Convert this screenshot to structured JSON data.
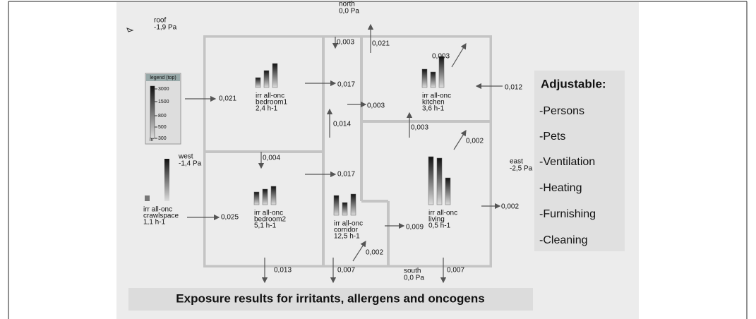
{
  "outdoor": [
    {
      "name": "roof",
      "pressure": "-1,9 Pa"
    },
    {
      "name": "north",
      "pressure": "0,0 Pa"
    },
    {
      "name": "west",
      "pressure": "-1,4 Pa"
    },
    {
      "name": "east",
      "pressure": "-2,5 Pa"
    },
    {
      "name": "south",
      "pressure": "0,0 Pa"
    }
  ],
  "legend": {
    "title": "legend (top)",
    "ticks": [
      "3000",
      "1500",
      "800",
      "500",
      "300"
    ],
    "unit": "irr"
  },
  "rooms": [
    {
      "label": "irr all-onc",
      "name": "bedroom1",
      "rate": "2,4 h-1"
    },
    {
      "label": "irr all-onc",
      "name": "kitchen",
      "rate": "3,6 h-1"
    },
    {
      "label": "irr all-onc",
      "name": "crawlspace",
      "rate": "1,1 h-1"
    },
    {
      "label": "irr all-onc",
      "name": "bedroom2",
      "rate": "5,1 h-1"
    },
    {
      "label": "irr all-onc",
      "name": "corridor",
      "rate": "12,5 h-1"
    },
    {
      "label": "irr all-onc",
      "name": "living",
      "rate": "0,5 h-1"
    }
  ],
  "flows": [
    "0,021",
    "0,017",
    "0,003",
    "0,021",
    "0,003",
    "0,012",
    "0,003",
    "0,014",
    "0,003",
    "0,002",
    "0,004",
    "0,017",
    "0,025",
    "0,009",
    "0,002",
    "0,002",
    "0,013",
    "0,007",
    "0,007"
  ],
  "panel": {
    "title": "Adjustable:",
    "items": [
      "-Persons",
      "-Pets",
      "-Ventilation",
      "-Heating",
      "-Furnishing",
      "-Cleaning"
    ]
  },
  "caption": "Exposure results for irritants, allergens and oncogens"
}
